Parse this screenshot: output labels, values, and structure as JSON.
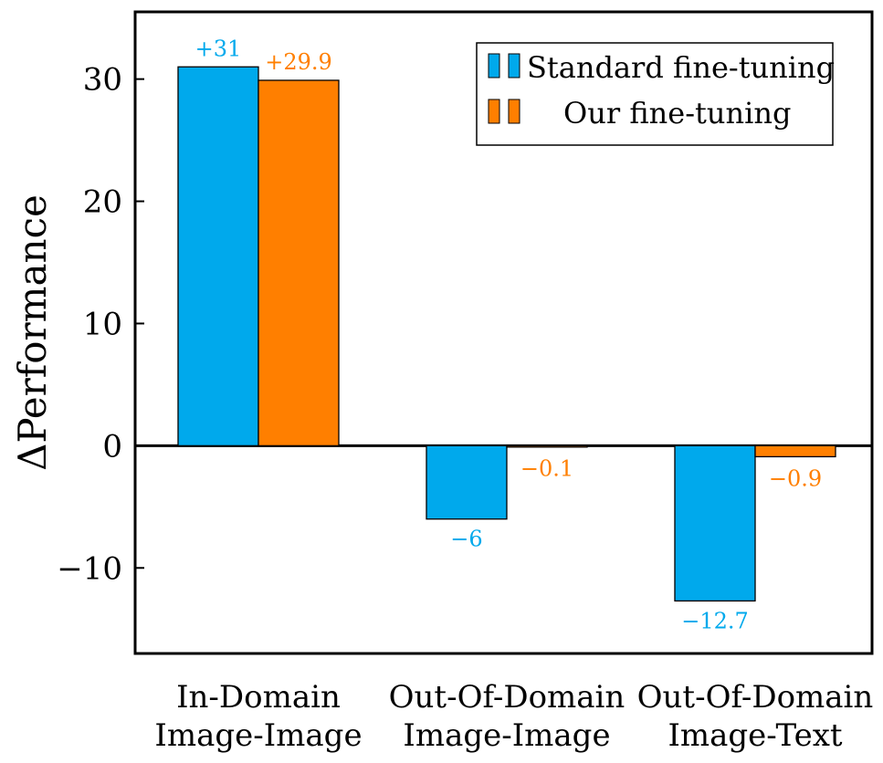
{
  "chart_data": {
    "type": "bar",
    "ylabel": "ΔPerformance",
    "ylim": [
      -17,
      35.5
    ],
    "yticks": [
      -10,
      0,
      10,
      20,
      30
    ],
    "ytick_labels": [
      "−10",
      "0",
      "10",
      "20",
      "30"
    ],
    "categories": [
      [
        "In-Domain",
        "Image-Image"
      ],
      [
        "Out-Of-Domain",
        "Image-Image"
      ],
      [
        "Out-Of-Domain",
        "Image-Text"
      ]
    ],
    "series": [
      {
        "name": "Standard fine-tuning",
        "color": "#00A9EC",
        "values": [
          31,
          -6,
          -12.7
        ],
        "labels": [
          "+31",
          "−6",
          "−12.7"
        ]
      },
      {
        "name": "Our fine-tuning",
        "color": "#FF7F00",
        "values": [
          29.9,
          -0.1,
          -0.9
        ],
        "labels": [
          "+29.9",
          "−0.1",
          "−0.9"
        ]
      }
    ],
    "legend_position": "top-right",
    "grid": false
  }
}
